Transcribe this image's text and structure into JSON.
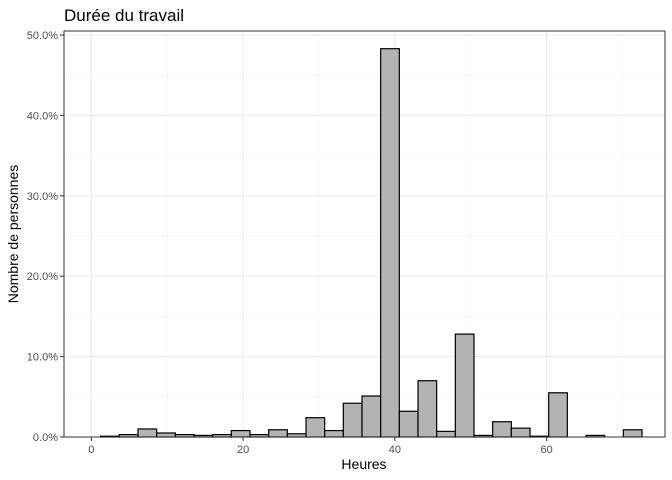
{
  "chart_data": {
    "type": "bar",
    "title": "Durée du travail",
    "xlabel": "Heures",
    "ylabel": "Nombre de personnes",
    "xlim": [
      -3.6,
      75.6
    ],
    "ylim": [
      0,
      0.505
    ],
    "xticks": [
      0,
      20,
      40,
      60
    ],
    "xtick_labels": [
      "0",
      "20",
      "40",
      "60"
    ],
    "yticks": [
      0,
      0.1,
      0.2,
      0.3,
      0.4,
      0.5
    ],
    "ytick_labels": [
      "0.0%",
      "10.0%",
      "20.0%",
      "30.0%",
      "40.0%",
      "50.0%"
    ],
    "grid": true,
    "legend": "none",
    "bin_width": 2.46,
    "bins": [
      {
        "x": 0.0,
        "value": 0.0
      },
      {
        "x": 2.46,
        "value": 0.001
      },
      {
        "x": 4.92,
        "value": 0.003
      },
      {
        "x": 7.38,
        "value": 0.01
      },
      {
        "x": 9.84,
        "value": 0.005
      },
      {
        "x": 12.3,
        "value": 0.003
      },
      {
        "x": 14.76,
        "value": 0.002
      },
      {
        "x": 17.22,
        "value": 0.003
      },
      {
        "x": 19.68,
        "value": 0.008
      },
      {
        "x": 22.14,
        "value": 0.003
      },
      {
        "x": 24.6,
        "value": 0.009
      },
      {
        "x": 27.06,
        "value": 0.004
      },
      {
        "x": 29.52,
        "value": 0.024
      },
      {
        "x": 31.98,
        "value": 0.008
      },
      {
        "x": 34.44,
        "value": 0.042
      },
      {
        "x": 36.9,
        "value": 0.051
      },
      {
        "x": 39.36,
        "value": 0.483
      },
      {
        "x": 41.82,
        "value": 0.032
      },
      {
        "x": 44.28,
        "value": 0.07
      },
      {
        "x": 46.74,
        "value": 0.007
      },
      {
        "x": 49.2,
        "value": 0.128
      },
      {
        "x": 51.66,
        "value": 0.002
      },
      {
        "x": 54.12,
        "value": 0.019
      },
      {
        "x": 56.58,
        "value": 0.011
      },
      {
        "x": 59.04,
        "value": 0.001
      },
      {
        "x": 61.5,
        "value": 0.055
      },
      {
        "x": 63.96,
        "value": 0.0
      },
      {
        "x": 66.42,
        "value": 0.002
      },
      {
        "x": 68.88,
        "value": 0.0
      },
      {
        "x": 71.34,
        "value": 0.009
      }
    ]
  }
}
